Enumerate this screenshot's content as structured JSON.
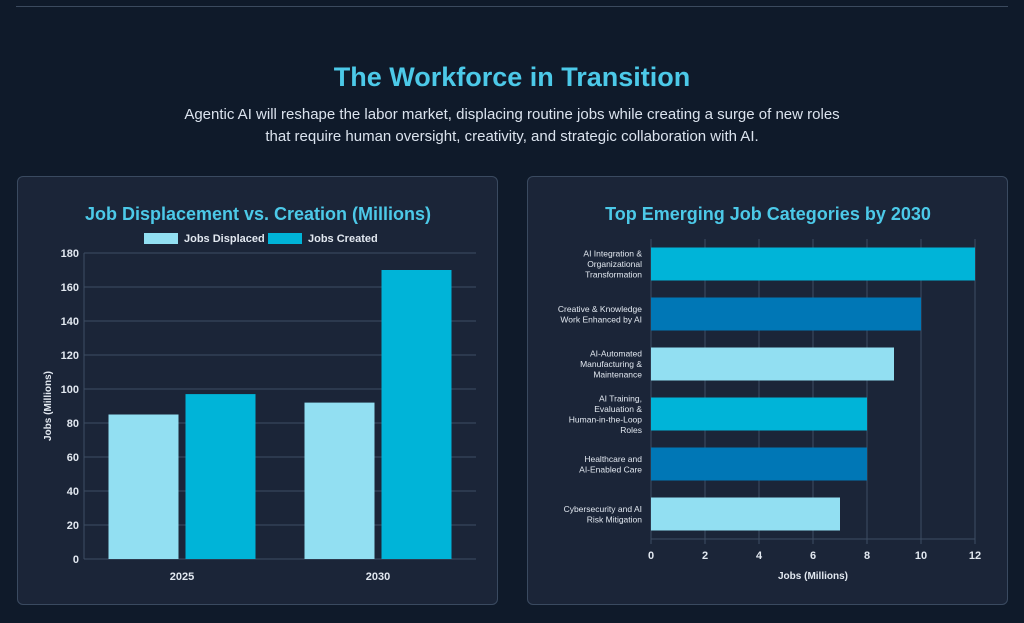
{
  "page": {
    "title": "The Workforce in Transition",
    "subtitle_line1": "Agentic AI will reshape the labor market, displacing routine jobs while creating a surge of new roles",
    "subtitle_line2": "that require human oversight, creativity, and strategic collaboration with AI."
  },
  "colors": {
    "accent": "#4cc9e8",
    "light_bar": "#92dff2",
    "mid_bar": "#00b4d8",
    "dark_bar": "#0077b6",
    "grid": "#3e4d63",
    "axis_text": "#e2e8f0"
  },
  "chart_data": [
    {
      "type": "bar",
      "title": "Job Displacement vs. Creation (Millions)",
      "categories": [
        "2025",
        "2030"
      ],
      "series": [
        {
          "name": "Jobs Displaced",
          "values": [
            85,
            92
          ],
          "color": "#92dff2"
        },
        {
          "name": "Jobs Created",
          "values": [
            97,
            170
          ],
          "color": "#00b4d8"
        }
      ],
      "xlabel": "",
      "ylabel": "Jobs (Millions)",
      "ylim": [
        0,
        180
      ],
      "yticks": [
        0,
        20,
        40,
        60,
        80,
        100,
        120,
        140,
        160,
        180
      ],
      "grid": true,
      "legend": "top"
    },
    {
      "type": "bar",
      "orientation": "horizontal",
      "title": "Top Emerging Job Categories by 2030",
      "categories": [
        [
          "AI Integration &",
          "Organizational",
          "Transformation"
        ],
        [
          "Creative & Knowledge",
          "Work Enhanced by AI"
        ],
        [
          "AI-Automated",
          "Manufacturing &",
          "Maintenance"
        ],
        [
          "AI Training,",
          "Evaluation &",
          "Human-in-the-Loop",
          "Roles"
        ],
        [
          "Healthcare and",
          "AI-Enabled Care"
        ],
        [
          "Cybersecurity and AI",
          "Risk Mitigation"
        ]
      ],
      "values": [
        12,
        10,
        9,
        8,
        8,
        7
      ],
      "colors": [
        "#00b4d8",
        "#0077b6",
        "#92dff2",
        "#00b4d8",
        "#0077b6",
        "#92dff2"
      ],
      "xlabel": "Jobs (Millions)",
      "xlim": [
        0,
        12
      ],
      "xticks": [
        0,
        2,
        4,
        6,
        8,
        10,
        12
      ],
      "grid": true,
      "legend": "none"
    }
  ]
}
